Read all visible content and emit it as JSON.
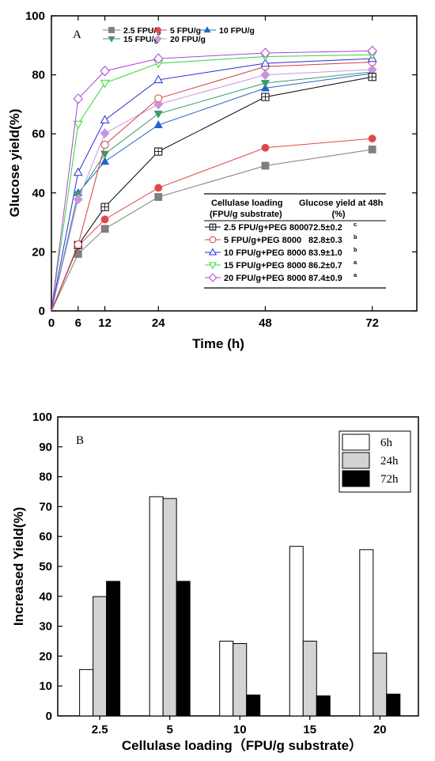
{
  "chart_data": [
    {
      "panel": "A",
      "type": "line",
      "xlabel": "Time (h)",
      "ylabel": "Glucose yield(%)",
      "xlim": [
        0,
        82
      ],
      "ylim": [
        0,
        100
      ],
      "xticks": [
        0,
        6,
        12,
        24,
        48,
        72
      ],
      "yticks": [
        0,
        20,
        40,
        60,
        80,
        100
      ],
      "x": [
        0,
        6,
        12,
        24,
        48,
        72
      ],
      "series": [
        {
          "name": "2.5 FPU/g",
          "marker": "square",
          "fill": "solid",
          "color": "#7f7f7f",
          "values": [
            0,
            19.3,
            27.8,
            38.6,
            49.2,
            54.7
          ]
        },
        {
          "name": "5 FPU/g",
          "marker": "circle",
          "fill": "solid",
          "color": "#e04848",
          "values": [
            0,
            22.0,
            31.0,
            41.7,
            55.3,
            58.4
          ]
        },
        {
          "name": "10 FPU/g",
          "marker": "triangle-up",
          "fill": "solid",
          "color": "#2266cc",
          "values": [
            0,
            40.0,
            50.6,
            63.0,
            75.5,
            80.5
          ]
        },
        {
          "name": "15 FPU/g",
          "marker": "triangle-down",
          "fill": "solid",
          "color": "#3c9a6c",
          "values": [
            0,
            39.5,
            53.2,
            66.8,
            77.2,
            81.0
          ]
        },
        {
          "name": "20 FPU/g",
          "marker": "diamond",
          "fill": "solid",
          "color": "#c896e0",
          "values": [
            0,
            37.8,
            60.2,
            70.0,
            80.0,
            81.8
          ]
        },
        {
          "name": "2.5 FPU/g+PEG 8000",
          "marker": "square",
          "fill": "open",
          "color": "#000000",
          "values": [
            0,
            22.3,
            35.2,
            54.0,
            72.5,
            79.3
          ]
        },
        {
          "name": "5 FPU/g+PEG 8000",
          "marker": "circle",
          "fill": "open",
          "color": "#d04040",
          "values": [
            0,
            22.5,
            56.3,
            72.0,
            82.8,
            84.3
          ]
        },
        {
          "name": "10 FPU/g+PEG 8000",
          "marker": "triangle-up",
          "fill": "open",
          "color": "#2c2cd8",
          "values": [
            0,
            46.9,
            64.7,
            78.3,
            83.9,
            85.5
          ]
        },
        {
          "name": "15 FPU/g+PEG 8000",
          "marker": "triangle-down",
          "fill": "open",
          "color": "#30d830",
          "values": [
            0,
            63.3,
            77.2,
            83.9,
            86.2,
            86.8
          ]
        },
        {
          "name": "20 FPU/g+PEG 8000",
          "marker": "diamond",
          "fill": "open",
          "color": "#b040d8",
          "values": [
            0,
            71.9,
            81.3,
            85.5,
            87.4,
            88.1
          ]
        }
      ],
      "table": {
        "header_col1_line1": "Cellulase loading",
        "header_col1_line2": "(FPU/g substrate)",
        "header_col2_line1": "Glucose yield at 48h",
        "header_col2_line2": "(%)",
        "rows": [
          {
            "label": "2.5 FPU/g+PEG 8000",
            "value": "72.5±0.2",
            "sup": "c"
          },
          {
            "label": "5 FPU/g+PEG 8000",
            "value": "82.8±0.3",
            "sup": "b"
          },
          {
            "label": "10 FPU/g+PEG 8000",
            "value": "83.9±1.0",
            "sup": "b"
          },
          {
            "label": "15 FPU/g+PEG 8000",
            "value": "86.2±0.7",
            "sup": "a"
          },
          {
            "label": "20 FPU/g+PEG 8000",
            "value": "87.4±0.9",
            "sup": "a"
          }
        ]
      },
      "legend_placement": "top-left"
    },
    {
      "panel": "B",
      "type": "bar",
      "xlabel": "Cellulase loading（FPU/g substrate）",
      "ylabel": "Increased Yield(%)",
      "ylim": [
        0,
        100
      ],
      "yticks": [
        0,
        10,
        20,
        30,
        40,
        50,
        60,
        70,
        80,
        90,
        100
      ],
      "categories": [
        "2.5",
        "5",
        "10",
        "15",
        "20"
      ],
      "series": [
        {
          "name": "6h",
          "color": "#ffffff",
          "values": [
            15.5,
            73.3,
            25.0,
            56.7,
            55.6
          ]
        },
        {
          "name": "24h",
          "color": "#d3d3d3",
          "values": [
            39.9,
            72.7,
            24.2,
            25.0,
            21.0
          ]
        },
        {
          "name": "72h",
          "color": "#000000",
          "values": [
            45.0,
            45.0,
            7.0,
            6.7,
            7.3
          ]
        }
      ],
      "legend_placement": "top-right"
    }
  ]
}
